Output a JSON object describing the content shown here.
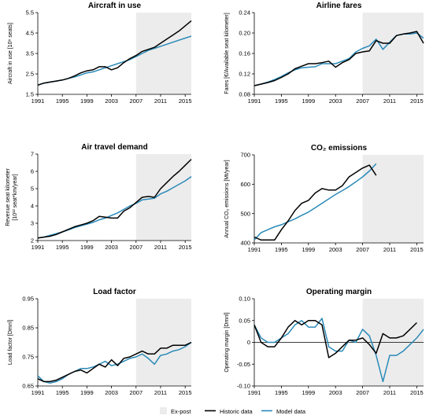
{
  "legend": {
    "expost_label": "Ex-post",
    "historic_label": "Historic data",
    "model_label": "Model data"
  },
  "colors": {
    "historic": "#000000",
    "model": "#2a8ab8",
    "expost": "#ececec",
    "axis": "#000000",
    "zero_line": "#000000"
  },
  "chart_data": [
    {
      "type": "line",
      "title": "Aircraft in use",
      "ylabel": "Aircraft in use [10⁶ seats]",
      "ylim": [
        1.5,
        5.5
      ],
      "yticks": [
        "1.5",
        "2.5",
        "3.5",
        "4.5",
        "5.5"
      ],
      "ytick_values": [
        1.5,
        2.5,
        3.5,
        4.5,
        5.5
      ],
      "xlim": [
        1991,
        2016
      ],
      "xticks": [
        "1991",
        "1995",
        "1999",
        "2003",
        "2007",
        "2011",
        "2015"
      ],
      "expost_range": [
        2007,
        2016
      ],
      "series": [
        {
          "role": "historic",
          "x": [
            1991,
            1992,
            1993,
            1994,
            1995,
            1996,
            1997,
            1998,
            1999,
            2000,
            2001,
            2002,
            2003,
            2004,
            2005,
            2006,
            2007,
            2008,
            2009,
            2010,
            2011,
            2012,
            2013,
            2014,
            2015,
            2016
          ],
          "values": [
            1.95,
            2.05,
            2.1,
            2.15,
            2.2,
            2.28,
            2.4,
            2.55,
            2.65,
            2.7,
            2.85,
            2.85,
            2.7,
            2.8,
            3.05,
            3.25,
            3.4,
            3.6,
            3.7,
            3.8,
            4.0,
            4.2,
            4.4,
            4.6,
            4.85,
            5.1
          ]
        },
        {
          "role": "model",
          "x": [
            1991,
            1992,
            1993,
            1994,
            1995,
            1996,
            1997,
            1998,
            1999,
            2000,
            2001,
            2002,
            2003,
            2004,
            2005,
            2006,
            2007,
            2008,
            2009,
            2010,
            2011,
            2012,
            2013,
            2014,
            2015,
            2016
          ],
          "values": [
            1.95,
            2.05,
            2.1,
            2.15,
            2.2,
            2.28,
            2.35,
            2.45,
            2.55,
            2.6,
            2.7,
            2.8,
            2.9,
            3.0,
            3.1,
            3.2,
            3.35,
            3.5,
            3.65,
            3.75,
            3.85,
            3.95,
            4.05,
            4.15,
            4.25,
            4.35
          ]
        }
      ]
    },
    {
      "type": "line",
      "title": "Airline fares",
      "ylabel": "Fares [€/Available seat kilometer]",
      "ylim": [
        0.08,
        0.24
      ],
      "yticks": [
        "0.08",
        "0.12",
        "0.16",
        "0.20",
        "0.24"
      ],
      "ytick_values": [
        0.08,
        0.12,
        0.16,
        0.2,
        0.24
      ],
      "xlim": [
        1991,
        2016
      ],
      "xticks": [
        "1991",
        "1995",
        "1999",
        "2003",
        "2007",
        "2011",
        "2015"
      ],
      "expost_range": [
        2007,
        2016
      ],
      "series": [
        {
          "role": "historic",
          "x": [
            1991,
            1992,
            1993,
            1994,
            1995,
            1996,
            1997,
            1998,
            1999,
            2000,
            2001,
            2002,
            2003,
            2004,
            2005,
            2006,
            2007,
            2008,
            2009,
            2010,
            2011,
            2012,
            2013,
            2014,
            2015,
            2016
          ],
          "values": [
            0.097,
            0.1,
            0.103,
            0.107,
            0.113,
            0.12,
            0.13,
            0.135,
            0.14,
            0.14,
            0.142,
            0.145,
            0.133,
            0.142,
            0.148,
            0.16,
            0.163,
            0.165,
            0.185,
            0.18,
            0.18,
            0.195,
            0.198,
            0.2,
            0.203,
            0.18
          ]
        },
        {
          "role": "model",
          "x": [
            1991,
            1992,
            1993,
            1994,
            1995,
            1996,
            1997,
            1998,
            1999,
            2000,
            2001,
            2002,
            2003,
            2004,
            2005,
            2006,
            2007,
            2008,
            2009,
            2010,
            2011,
            2012,
            2013,
            2014,
            2015,
            2016
          ],
          "values": [
            0.097,
            0.1,
            0.104,
            0.109,
            0.115,
            0.122,
            0.128,
            0.132,
            0.133,
            0.134,
            0.14,
            0.14,
            0.14,
            0.145,
            0.15,
            0.163,
            0.17,
            0.175,
            0.188,
            0.168,
            0.182,
            0.195,
            0.198,
            0.198,
            0.2,
            0.19
          ]
        }
      ]
    },
    {
      "type": "line",
      "title": "Air travel demand",
      "ylabel": "Revenue seat kilometer",
      "ylabel2": "[10¹² seat*km/year]",
      "ylim": [
        2,
        7
      ],
      "yticks": [
        "2",
        "3",
        "4",
        "5",
        "6",
        "7"
      ],
      "ytick_values": [
        2,
        3,
        4,
        5,
        6,
        7
      ],
      "xlim": [
        1991,
        2016
      ],
      "xticks": [
        "1991",
        "1995",
        "1999",
        "2003",
        "2007",
        "2011",
        "2015"
      ],
      "expost_range": [
        2007,
        2016
      ],
      "series": [
        {
          "role": "historic",
          "x": [
            1991,
            1992,
            1993,
            1994,
            1995,
            1996,
            1997,
            1998,
            1999,
            2000,
            2001,
            2002,
            2003,
            2004,
            2005,
            2006,
            2007,
            2008,
            2009,
            2010,
            2011,
            2012,
            2013,
            2014,
            2015,
            2016
          ],
          "values": [
            2.15,
            2.2,
            2.25,
            2.35,
            2.5,
            2.65,
            2.8,
            2.9,
            3.0,
            3.15,
            3.4,
            3.35,
            3.3,
            3.3,
            3.7,
            3.9,
            4.2,
            4.5,
            4.55,
            4.5,
            5.0,
            5.35,
            5.7,
            6.0,
            6.35,
            6.7
          ]
        },
        {
          "role": "model",
          "x": [
            1991,
            1992,
            1993,
            1994,
            1995,
            1996,
            1997,
            1998,
            1999,
            2000,
            2001,
            2002,
            2003,
            2004,
            2005,
            2006,
            2007,
            2008,
            2009,
            2010,
            2011,
            2012,
            2013,
            2014,
            2015,
            2016
          ],
          "values": [
            2.15,
            2.2,
            2.3,
            2.4,
            2.5,
            2.62,
            2.75,
            2.85,
            2.95,
            3.05,
            3.2,
            3.3,
            3.45,
            3.6,
            3.8,
            4.0,
            4.15,
            4.35,
            4.4,
            4.45,
            4.7,
            4.85,
            5.05,
            5.25,
            5.45,
            5.7
          ]
        }
      ]
    },
    {
      "type": "line",
      "title": "CO₂ emissions",
      "ylabel": "Annual CO₂ emissions [Mt/year]",
      "ylim": [
        400,
        700
      ],
      "yticks": [
        "400",
        "500",
        "600",
        "700"
      ],
      "ytick_values": [
        400,
        500,
        600,
        700
      ],
      "xlim": [
        1991,
        2016
      ],
      "xticks": [
        "1991",
        "1995",
        "1999",
        "2003",
        "2007",
        "2011",
        "2015"
      ],
      "expost_range": [
        2007,
        2016
      ],
      "series": [
        {
          "role": "historic",
          "x": [
            1991,
            1992,
            1993,
            1994,
            1995,
            1996,
            1997,
            1998,
            1999,
            2000,
            2001,
            2002,
            2003,
            2004,
            2005,
            2006,
            2007,
            2008,
            2009
          ],
          "values": [
            420,
            410,
            410,
            410,
            445,
            475,
            510,
            535,
            545,
            570,
            585,
            580,
            580,
            595,
            625,
            640,
            655,
            665,
            630
          ]
        },
        {
          "role": "model",
          "x": [
            1991,
            1992,
            1993,
            1994,
            1995,
            1996,
            1997,
            1998,
            1999,
            2000,
            2001,
            2002,
            2003,
            2004,
            2005,
            2006,
            2007,
            2008,
            2009
          ],
          "values": [
            410,
            435,
            445,
            455,
            462,
            472,
            482,
            494,
            505,
            520,
            535,
            550,
            565,
            578,
            592,
            608,
            625,
            645,
            670
          ]
        }
      ]
    },
    {
      "type": "line",
      "title": "Load factor",
      "ylabel": "Load factor [Dmnl]",
      "ylim": [
        0.65,
        0.95
      ],
      "yticks": [
        "0.65",
        "0.75",
        "0.85",
        "0.95"
      ],
      "ytick_values": [
        0.65,
        0.75,
        0.85,
        0.95
      ],
      "xlim": [
        1991,
        2016
      ],
      "xticks": [
        "1991",
        "1995",
        "1999",
        "2003",
        "2007",
        "2011",
        "2015"
      ],
      "expost_range": [
        2007,
        2016
      ],
      "series": [
        {
          "role": "historic",
          "x": [
            1991,
            1992,
            1993,
            1994,
            1995,
            1996,
            1997,
            1998,
            1999,
            2000,
            2001,
            2002,
            2003,
            2004,
            2005,
            2006,
            2007,
            2008,
            2009,
            2010,
            2011,
            2012,
            2013,
            2014,
            2015,
            2016
          ],
          "values": [
            0.675,
            0.665,
            0.665,
            0.67,
            0.68,
            0.69,
            0.7,
            0.705,
            0.695,
            0.71,
            0.725,
            0.715,
            0.74,
            0.72,
            0.745,
            0.75,
            0.76,
            0.77,
            0.76,
            0.76,
            0.78,
            0.78,
            0.79,
            0.79,
            0.79,
            0.8
          ]
        },
        {
          "role": "model",
          "x": [
            1991,
            1992,
            1993,
            1994,
            1995,
            1996,
            1997,
            1998,
            1999,
            2000,
            2001,
            2002,
            2003,
            2004,
            2005,
            2006,
            2007,
            2008,
            2009,
            2010,
            2011,
            2012,
            2013,
            2014,
            2015,
            2016
          ],
          "values": [
            0.685,
            0.665,
            0.66,
            0.665,
            0.675,
            0.69,
            0.7,
            0.71,
            0.71,
            0.715,
            0.725,
            0.735,
            0.72,
            0.725,
            0.735,
            0.745,
            0.75,
            0.76,
            0.745,
            0.725,
            0.755,
            0.76,
            0.77,
            0.775,
            0.785,
            0.8
          ]
        }
      ]
    },
    {
      "type": "line",
      "title": "Operating margin",
      "ylabel": "Operating margin [Dmnl]",
      "ylim": [
        -0.1,
        0.1
      ],
      "yticks": [
        "-0.10",
        "-0.05",
        "0",
        "0.05",
        "0.10"
      ],
      "ytick_values": [
        -0.1,
        -0.05,
        0,
        0.05,
        0.1
      ],
      "zero_line": 0,
      "xlim": [
        1991,
        2016
      ],
      "xticks": [
        "1991",
        "1995",
        "1999",
        "2003",
        "2007",
        "2011",
        "2015"
      ],
      "expost_range": [
        2007,
        2016
      ],
      "series": [
        {
          "role": "historic",
          "x": [
            1991,
            1992,
            1993,
            1994,
            1995,
            1996,
            1997,
            1998,
            1999,
            2000,
            2001,
            2002,
            2003,
            2004,
            2005,
            2006,
            2007,
            2008,
            2009,
            2010,
            2011,
            2012,
            2013,
            2014,
            2015
          ],
          "values": [
            0.04,
            0.0,
            -0.01,
            -0.01,
            0.01,
            0.035,
            0.05,
            0.04,
            0.05,
            0.05,
            0.04,
            -0.035,
            -0.025,
            -0.01,
            0.005,
            0.005,
            0.01,
            -0.005,
            -0.025,
            0.02,
            0.01,
            0.01,
            0.015,
            0.03,
            0.045
          ]
        },
        {
          "role": "model",
          "x": [
            1991,
            1992,
            1993,
            1994,
            1995,
            1996,
            1997,
            1998,
            1999,
            2000,
            2001,
            2002,
            2003,
            2004,
            2005,
            2006,
            2007,
            2008,
            2009,
            2010,
            2011,
            2012,
            2013,
            2014,
            2015,
            2016
          ],
          "values": [
            0.04,
            0.01,
            0.0,
            0.0,
            0.01,
            0.02,
            0.04,
            0.05,
            0.035,
            0.035,
            0.055,
            -0.01,
            -0.02,
            -0.02,
            0.005,
            0.0,
            0.03,
            0.015,
            -0.03,
            -0.09,
            -0.03,
            -0.03,
            -0.02,
            -0.005,
            0.01,
            0.03
          ]
        }
      ]
    }
  ]
}
